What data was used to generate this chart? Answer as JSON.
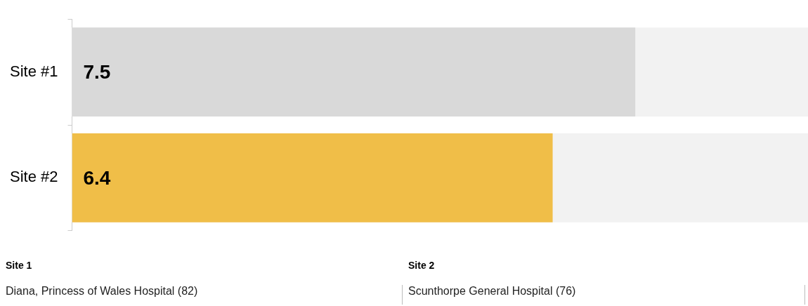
{
  "chart_data": {
    "type": "bar",
    "orientation": "horizontal",
    "categories": [
      "Site #1",
      "Site #2"
    ],
    "values": [
      7.5,
      6.4
    ],
    "colors": [
      "#d9d9d9",
      "#f0be48"
    ],
    "xlim": [
      0,
      9.8
    ],
    "tick_labels": "y",
    "data_labels": true,
    "legend": false,
    "annotations": [
      "Site 1",
      "Diana, Princess of Wales Hospital (82)",
      "Site 2",
      "Scunthorpe General Hospital (76)"
    ]
  }
}
